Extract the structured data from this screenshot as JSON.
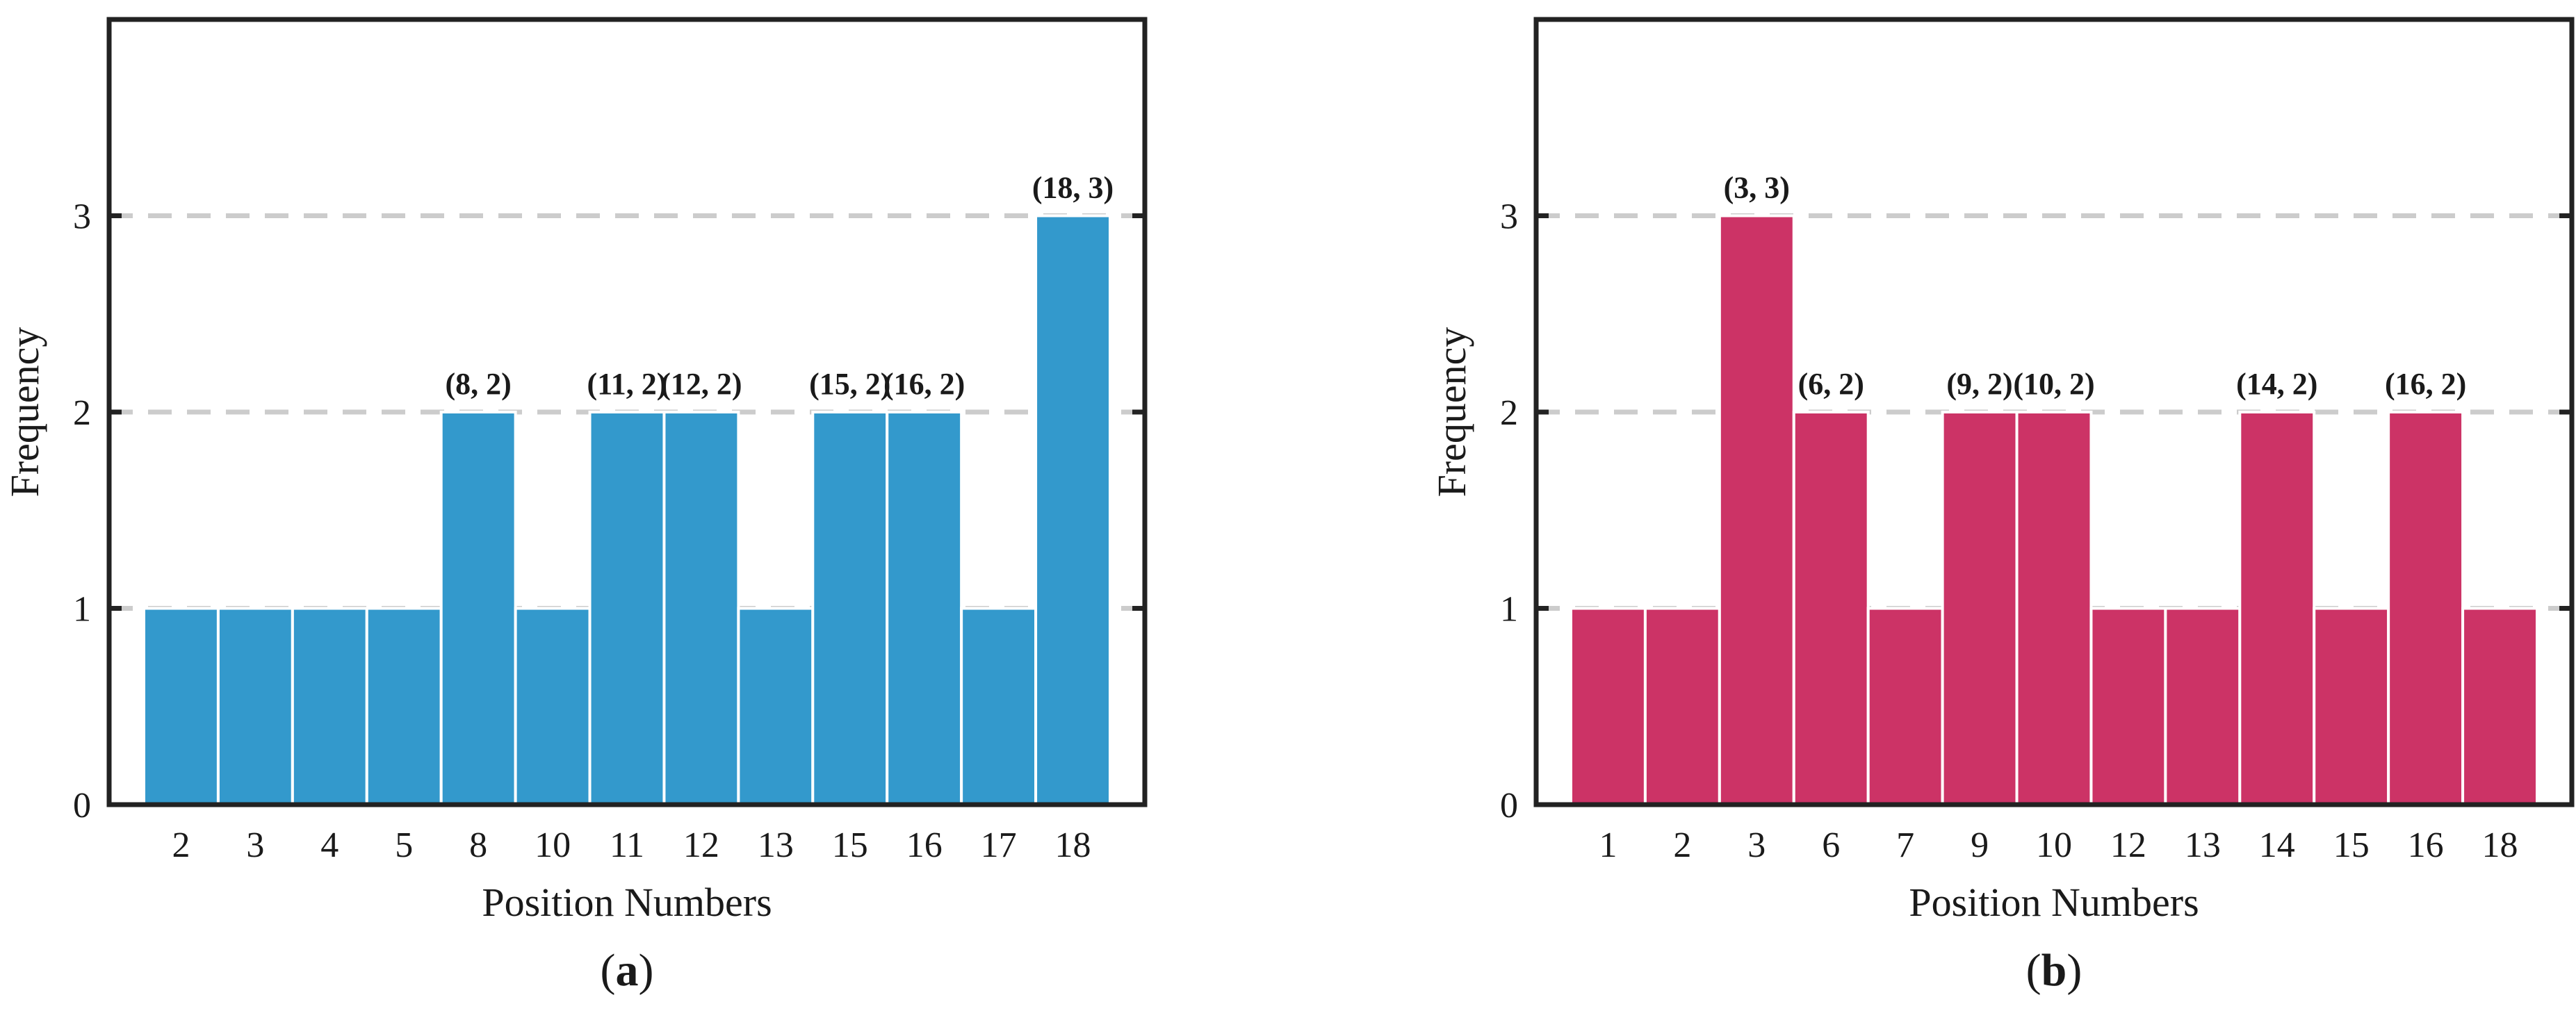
{
  "chart_data": [
    {
      "type": "bar",
      "panel_label": "a",
      "color": "#3399CC",
      "categories": [
        "2",
        "3",
        "4",
        "5",
        "8",
        "10",
        "11",
        "12",
        "13",
        "15",
        "16",
        "17",
        "18"
      ],
      "values": [
        1,
        1,
        1,
        1,
        2,
        1,
        2,
        2,
        1,
        2,
        2,
        1,
        3
      ],
      "annotations": [
        {
          "category": "8",
          "text": "(8, 2)"
        },
        {
          "category": "11",
          "text": "(11, 2)"
        },
        {
          "category": "12",
          "text": "(12, 2)"
        },
        {
          "category": "15",
          "text": "(15, 2)"
        },
        {
          "category": "16",
          "text": "(16, 2)"
        },
        {
          "category": "18",
          "text": "(18, 3)"
        }
      ],
      "xlabel": "Position Numbers",
      "ylabel": "Frequency",
      "ylim": [
        0,
        4
      ],
      "yticks": [
        0,
        1,
        2,
        3
      ],
      "grid": "dashed horizontal at y ticks"
    },
    {
      "type": "bar",
      "panel_label": "b",
      "color": "#CC3366",
      "categories": [
        "1",
        "2",
        "3",
        "6",
        "7",
        "9",
        "10",
        "12",
        "13",
        "14",
        "15",
        "16",
        "18"
      ],
      "values": [
        1,
        1,
        3,
        2,
        1,
        2,
        2,
        1,
        1,
        2,
        1,
        2,
        1
      ],
      "annotations": [
        {
          "category": "3",
          "text": "(3, 3)"
        },
        {
          "category": "6",
          "text": "(6, 2)"
        },
        {
          "category": "9",
          "text": "(9, 2)"
        },
        {
          "category": "10",
          "text": "(10, 2)"
        },
        {
          "category": "14",
          "text": "(14, 2)"
        },
        {
          "category": "16",
          "text": "(16, 2)"
        }
      ],
      "xlabel": "Position Numbers",
      "ylabel": "Frequency",
      "ylim": [
        0,
        4
      ],
      "yticks": [
        0,
        1,
        2,
        3
      ],
      "grid": "dashed horizontal at y ticks"
    }
  ]
}
